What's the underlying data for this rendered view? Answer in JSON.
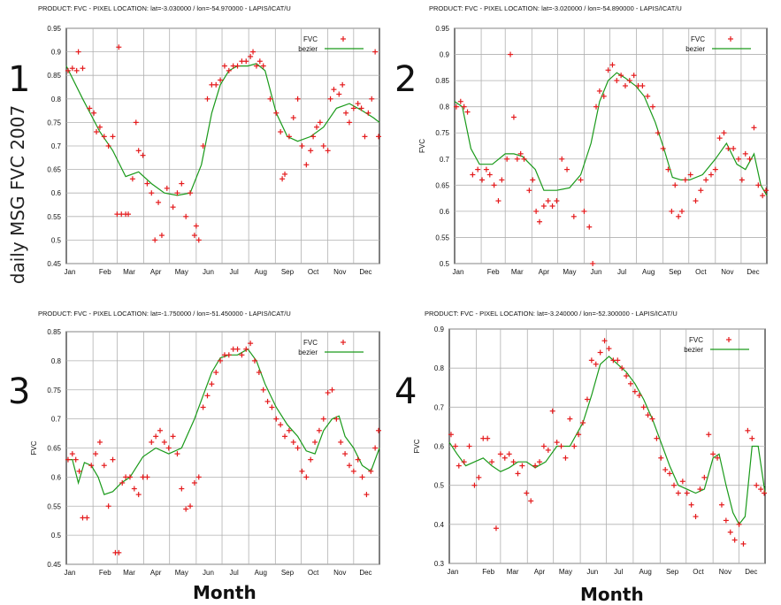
{
  "figure": {
    "side_label": "daily MSG FVC 2007",
    "xlabel": "Month"
  },
  "panels": [
    {
      "number": "1",
      "title": "PRODUCT: FVC - PIXEL LOCATION: lat=-3.030000 / lon=-54.970000 - LAPIS/ICAT/U"
    },
    {
      "number": "2",
      "title": "PRODUCT: FVC - PIXEL LOCATION: lat=-3.020000 / lon=-54.890000 - LAPIS/ICAT/U"
    },
    {
      "number": "3",
      "title": "PRODUCT: FVC - PIXEL LOCATION: lat=-1.750000 / lon=-51.450000 - LAPIS/ICAT/U"
    },
    {
      "number": "4",
      "title": "PRODUCT: FVC - PIXEL LOCATION: lat=-3.240000 / lon=-52.300000 - LAPIS/ICAT/U"
    }
  ],
  "colors": {
    "points": "#e41a1c",
    "curve": "#1a9a1a",
    "grid": "#b0b0b0"
  },
  "chart_data": [
    {
      "type": "scatter",
      "title": "PRODUCT: FVC - PIXEL LOCATION: lat=-3.030000 / lon=-54.970000 - LAPIS/ICAT/U",
      "xlabel": "",
      "ylabel": "",
      "categories": [
        "Jan",
        "Feb",
        "Mar",
        "Apr",
        "May",
        "Jun",
        "Jul",
        "Aug",
        "Sep",
        "Oct",
        "Nov",
        "Dec"
      ],
      "xlim": [
        1,
        365
      ],
      "ylim": [
        0.45,
        0.95
      ],
      "yticks": [
        0.45,
        0.5,
        0.55,
        0.6,
        0.65,
        0.7,
        0.75,
        0.8,
        0.85,
        0.9,
        0.95
      ],
      "grid": true,
      "legend": "top-right",
      "series": [
        {
          "name": "FVC",
          "style": "points",
          "x": [
            3,
            8,
            13,
            15,
            20,
            28,
            33,
            36,
            40,
            45,
            50,
            55,
            60,
            62,
            65,
            70,
            73,
            78,
            82,
            85,
            90,
            95,
            100,
            104,
            108,
            112,
            118,
            125,
            130,
            135,
            140,
            145,
            150,
            152,
            155,
            160,
            165,
            170,
            175,
            180,
            185,
            190,
            195,
            200,
            205,
            210,
            215,
            218,
            222,
            226,
            230,
            238,
            245,
            250,
            252,
            255,
            260,
            265,
            270,
            275,
            280,
            285,
            288,
            292,
            296,
            300,
            305,
            308,
            312,
            318,
            322,
            326,
            330,
            335,
            340,
            344,
            348,
            352,
            356,
            360,
            364
          ],
          "y": [
            0.86,
            0.865,
            0.86,
            0.9,
            0.865,
            0.78,
            0.77,
            0.73,
            0.74,
            0.72,
            0.7,
            0.72,
            0.555,
            0.91,
            0.555,
            0.555,
            0.555,
            0.63,
            0.75,
            0.69,
            0.68,
            0.62,
            0.6,
            0.5,
            0.58,
            0.51,
            0.61,
            0.57,
            0.6,
            0.62,
            0.55,
            0.6,
            0.51,
            0.53,
            0.5,
            0.7,
            0.8,
            0.83,
            0.83,
            0.84,
            0.87,
            0.86,
            0.87,
            0.87,
            0.88,
            0.88,
            0.89,
            0.9,
            0.87,
            0.88,
            0.87,
            0.8,
            0.77,
            0.73,
            0.63,
            0.64,
            0.72,
            0.76,
            0.8,
            0.7,
            0.66,
            0.69,
            0.72,
            0.74,
            0.75,
            0.7,
            0.69,
            0.8,
            0.82,
            0.81,
            0.83,
            0.77,
            0.75,
            0.78,
            0.79,
            0.78,
            0.72,
            0.77,
            0.8,
            0.9,
            0.72
          ]
        },
        {
          "name": "bezier",
          "style": "line",
          "x": [
            1,
            20,
            40,
            55,
            70,
            85,
            100,
            115,
            130,
            145,
            158,
            170,
            180,
            190,
            200,
            212,
            222,
            232,
            245,
            258,
            270,
            285,
            300,
            315,
            330,
            345,
            358,
            365
          ],
          "y": [
            0.87,
            0.8,
            0.73,
            0.69,
            0.635,
            0.645,
            0.62,
            0.6,
            0.595,
            0.6,
            0.66,
            0.77,
            0.83,
            0.86,
            0.87,
            0.87,
            0.875,
            0.86,
            0.77,
            0.72,
            0.71,
            0.72,
            0.74,
            0.78,
            0.79,
            0.775,
            0.76,
            0.75
          ]
        }
      ]
    },
    {
      "type": "scatter",
      "title": "PRODUCT: FVC - PIXEL LOCATION: lat=-3.020000 / lon=-54.890000 - LAPIS/ICAT/U",
      "xlabel": "",
      "ylabel": "FVC",
      "categories": [
        "Jan",
        "Feb",
        "Mar",
        "Apr",
        "May",
        "Jun",
        "Jul",
        "Aug",
        "Sep",
        "Oct",
        "Nov",
        "Dec"
      ],
      "xlim": [
        1,
        365
      ],
      "ylim": [
        0.5,
        0.95
      ],
      "yticks": [
        0.5,
        0.55,
        0.6,
        0.65,
        0.7,
        0.75,
        0.8,
        0.85,
        0.9,
        0.95
      ],
      "grid": true,
      "legend": "top-right",
      "series": [
        {
          "name": "FVC",
          "style": "points",
          "x": [
            3,
            8,
            12,
            16,
            22,
            28,
            33,
            38,
            42,
            47,
            52,
            56,
            62,
            66,
            70,
            74,
            78,
            82,
            88,
            92,
            96,
            100,
            105,
            110,
            115,
            120,
            126,
            132,
            140,
            148,
            152,
            158,
            162,
            166,
            170,
            175,
            180,
            185,
            190,
            195,
            200,
            205,
            210,
            215,
            220,
            226,
            232,
            238,
            244,
            250,
            254,
            258,
            262,
            266,
            270,
            276,
            282,
            288,
            294,
            300,
            305,
            310,
            315,
            320,
            326,
            332,
            336,
            340,
            345,
            350,
            355,
            360,
            364
          ],
          "y": [
            0.8,
            0.81,
            0.8,
            0.79,
            0.67,
            0.68,
            0.66,
            0.68,
            0.67,
            0.65,
            0.62,
            0.66,
            0.7,
            0.9,
            0.78,
            0.7,
            0.71,
            0.7,
            0.64,
            0.66,
            0.6,
            0.58,
            0.61,
            0.62,
            0.61,
            0.62,
            0.7,
            0.68,
            0.59,
            0.66,
            0.6,
            0.57,
            0.5,
            0.8,
            0.83,
            0.82,
            0.87,
            0.88,
            0.85,
            0.86,
            0.84,
            0.85,
            0.86,
            0.84,
            0.84,
            0.82,
            0.8,
            0.75,
            0.72,
            0.68,
            0.6,
            0.65,
            0.59,
            0.6,
            0.66,
            0.67,
            0.62,
            0.64,
            0.66,
            0.67,
            0.68,
            0.74,
            0.75,
            0.72,
            0.72,
            0.7,
            0.66,
            0.71,
            0.7,
            0.76,
            0.65,
            0.63,
            0.64
          ]
        },
        {
          "name": "bezier",
          "style": "line",
          "x": [
            1,
            10,
            20,
            30,
            45,
            60,
            70,
            80,
            95,
            105,
            120,
            135,
            148,
            160,
            170,
            180,
            190,
            200,
            212,
            222,
            235,
            245,
            255,
            265,
            275,
            290,
            305,
            318,
            330,
            340,
            350,
            358,
            365
          ],
          "y": [
            0.81,
            0.8,
            0.72,
            0.69,
            0.69,
            0.71,
            0.71,
            0.705,
            0.68,
            0.64,
            0.64,
            0.645,
            0.67,
            0.73,
            0.81,
            0.85,
            0.865,
            0.855,
            0.84,
            0.82,
            0.77,
            0.72,
            0.665,
            0.66,
            0.66,
            0.67,
            0.7,
            0.73,
            0.69,
            0.68,
            0.71,
            0.65,
            0.63
          ]
        }
      ]
    },
    {
      "type": "scatter",
      "title": "PRODUCT: FVC - PIXEL LOCATION: lat=-1.750000 / lon=-51.450000 - LAPIS/ICAT/U",
      "xlabel": "Month",
      "ylabel": "FVC",
      "categories": [
        "Jan",
        "Feb",
        "Mar",
        "Apr",
        "May",
        "Jun",
        "Jul",
        "Aug",
        "Sep",
        "Oct",
        "Nov",
        "Dec"
      ],
      "xlim": [
        1,
        365
      ],
      "ylim": [
        0.45,
        0.85
      ],
      "yticks": [
        0.45,
        0.5,
        0.55,
        0.6,
        0.65,
        0.7,
        0.75,
        0.8,
        0.85
      ],
      "grid": true,
      "legend": "top-right",
      "series": [
        {
          "name": "FVC",
          "style": "points",
          "x": [
            3,
            8,
            12,
            16,
            20,
            25,
            30,
            35,
            40,
            45,
            50,
            55,
            58,
            62,
            66,
            70,
            75,
            80,
            85,
            90,
            95,
            100,
            105,
            110,
            115,
            120,
            125,
            130,
            135,
            140,
            145,
            150,
            155,
            160,
            165,
            170,
            175,
            180,
            185,
            190,
            195,
            200,
            205,
            210,
            215,
            220,
            225,
            230,
            235,
            240,
            245,
            250,
            255,
            260,
            265,
            270,
            275,
            280,
            285,
            290,
            295,
            300,
            305,
            310,
            315,
            320,
            325,
            330,
            335,
            340,
            345,
            350,
            355,
            360,
            364
          ],
          "y": [
            0.63,
            0.64,
            0.63,
            0.61,
            0.53,
            0.53,
            0.62,
            0.64,
            0.66,
            0.62,
            0.55,
            0.63,
            0.47,
            0.47,
            0.59,
            0.6,
            0.6,
            0.58,
            0.57,
            0.6,
            0.6,
            0.66,
            0.67,
            0.68,
            0.66,
            0.65,
            0.67,
            0.64,
            0.58,
            0.545,
            0.55,
            0.59,
            0.6,
            0.72,
            0.74,
            0.76,
            0.78,
            0.8,
            0.81,
            0.81,
            0.82,
            0.82,
            0.81,
            0.82,
            0.83,
            0.8,
            0.78,
            0.75,
            0.73,
            0.72,
            0.7,
            0.69,
            0.67,
            0.68,
            0.66,
            0.65,
            0.61,
            0.6,
            0.63,
            0.66,
            0.68,
            0.7,
            0.745,
            0.75,
            0.7,
            0.66,
            0.64,
            0.62,
            0.61,
            0.63,
            0.6,
            0.57,
            0.61,
            0.65,
            0.68
          ]
        },
        {
          "name": "bezier",
          "style": "line",
          "x": [
            1,
            8,
            15,
            22,
            30,
            38,
            45,
            55,
            65,
            75,
            90,
            105,
            120,
            135,
            150,
            160,
            170,
            180,
            190,
            200,
            212,
            222,
            232,
            245,
            258,
            270,
            280,
            290,
            300,
            310,
            318,
            325,
            335,
            345,
            355,
            365
          ],
          "y": [
            0.63,
            0.63,
            0.59,
            0.625,
            0.62,
            0.6,
            0.57,
            0.575,
            0.59,
            0.6,
            0.635,
            0.65,
            0.64,
            0.65,
            0.7,
            0.74,
            0.78,
            0.805,
            0.81,
            0.81,
            0.82,
            0.8,
            0.76,
            0.72,
            0.69,
            0.67,
            0.645,
            0.64,
            0.68,
            0.7,
            0.705,
            0.67,
            0.65,
            0.62,
            0.61,
            0.65
          ]
        }
      ]
    },
    {
      "type": "scatter",
      "title": "PRODUCT: FVC - PIXEL LOCATION: lat=-3.240000 / lon=-52.300000 - LAPIS/ICAT/U",
      "xlabel": "Month",
      "ylabel": "FVC",
      "categories": [
        "Jan",
        "Feb",
        "Mar",
        "Apr",
        "May",
        "Jun",
        "Jul",
        "Aug",
        "Sep",
        "Oct",
        "Nov",
        "Dec"
      ],
      "xlim": [
        1,
        365
      ],
      "ylim": [
        0.3,
        0.9
      ],
      "yticks": [
        0.3,
        0.4,
        0.5,
        0.6,
        0.7,
        0.8,
        0.9
      ],
      "grid": true,
      "legend": "top-right",
      "series": [
        {
          "name": "FVC",
          "style": "points",
          "x": [
            3,
            8,
            12,
            18,
            24,
            30,
            35,
            40,
            45,
            50,
            55,
            60,
            65,
            70,
            75,
            80,
            85,
            90,
            95,
            100,
            105,
            110,
            115,
            120,
            125,
            130,
            135,
            140,
            145,
            150,
            155,
            160,
            165,
            170,
            175,
            180,
            185,
            190,
            195,
            200,
            205,
            210,
            215,
            220,
            225,
            230,
            235,
            240,
            245,
            250,
            255,
            260,
            265,
            270,
            275,
            280,
            285,
            290,
            295,
            300,
            305,
            310,
            315,
            320,
            325,
            330,
            335,
            340,
            345,
            350,
            355,
            360,
            364
          ],
          "y": [
            0.63,
            0.6,
            0.55,
            0.56,
            0.6,
            0.5,
            0.52,
            0.62,
            0.62,
            0.56,
            0.39,
            0.58,
            0.57,
            0.58,
            0.56,
            0.53,
            0.55,
            0.48,
            0.46,
            0.55,
            0.56,
            0.6,
            0.59,
            0.69,
            0.61,
            0.6,
            0.57,
            0.67,
            0.6,
            0.63,
            0.66,
            0.72,
            0.82,
            0.81,
            0.84,
            0.87,
            0.85,
            0.82,
            0.82,
            0.8,
            0.78,
            0.76,
            0.74,
            0.73,
            0.7,
            0.68,
            0.67,
            0.62,
            0.57,
            0.54,
            0.53,
            0.5,
            0.48,
            0.51,
            0.48,
            0.45,
            0.42,
            0.49,
            0.52,
            0.63,
            0.58,
            0.57,
            0.45,
            0.41,
            0.38,
            0.36,
            0.4,
            0.35,
            0.64,
            0.62,
            0.5,
            0.49,
            0.48
          ]
        },
        {
          "name": "bezier",
          "style": "line",
          "x": [
            1,
            10,
            20,
            30,
            40,
            50,
            60,
            70,
            80,
            90,
            100,
            112,
            125,
            140,
            155,
            165,
            175,
            185,
            195,
            205,
            215,
            225,
            235,
            245,
            255,
            265,
            275,
            285,
            295,
            305,
            312,
            320,
            328,
            335,
            342,
            350,
            357,
            365
          ],
          "y": [
            0.61,
            0.58,
            0.55,
            0.56,
            0.57,
            0.55,
            0.535,
            0.545,
            0.56,
            0.56,
            0.545,
            0.56,
            0.6,
            0.6,
            0.66,
            0.73,
            0.81,
            0.83,
            0.81,
            0.79,
            0.76,
            0.72,
            0.67,
            0.61,
            0.55,
            0.5,
            0.49,
            0.48,
            0.49,
            0.57,
            0.58,
            0.5,
            0.43,
            0.4,
            0.42,
            0.6,
            0.6,
            0.48
          ]
        }
      ]
    }
  ]
}
